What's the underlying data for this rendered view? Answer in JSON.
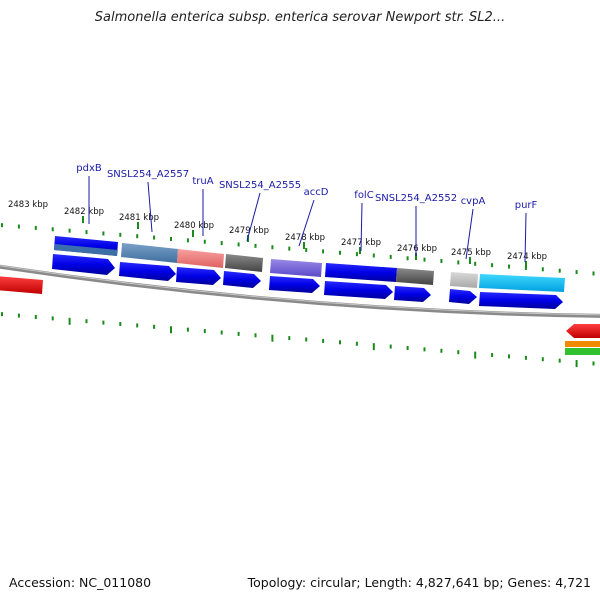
{
  "title": "Salmonella enterica subsp. enterica serovar Newport str. SL2...",
  "footer": {
    "accession": "Accession: NC_011080",
    "summary": "Topology: circular; Length: 4,827,641 bp; Genes: 4,721"
  },
  "scale_ticks": [
    "2483 kbp",
    "2482 kbp",
    "2481 kbp",
    "2480 kbp",
    "2479 kbp",
    "2478 kbp",
    "2477 kbp",
    "2476 kbp",
    "2475 kbp",
    "2474 kbp"
  ],
  "gene_labels": [
    "pdxB",
    "SNSL254_A2557",
    "truA",
    "SNSL254_A2555",
    "accD",
    "folC",
    "SNSL254_A2552",
    "cvpA",
    "purF"
  ],
  "colors": {
    "cds": "#1010e0",
    "backbone": "#8a8a8a",
    "tick": "#1a8a1a",
    "label": "#1a1aa8",
    "red_feature": "#e80000"
  }
}
